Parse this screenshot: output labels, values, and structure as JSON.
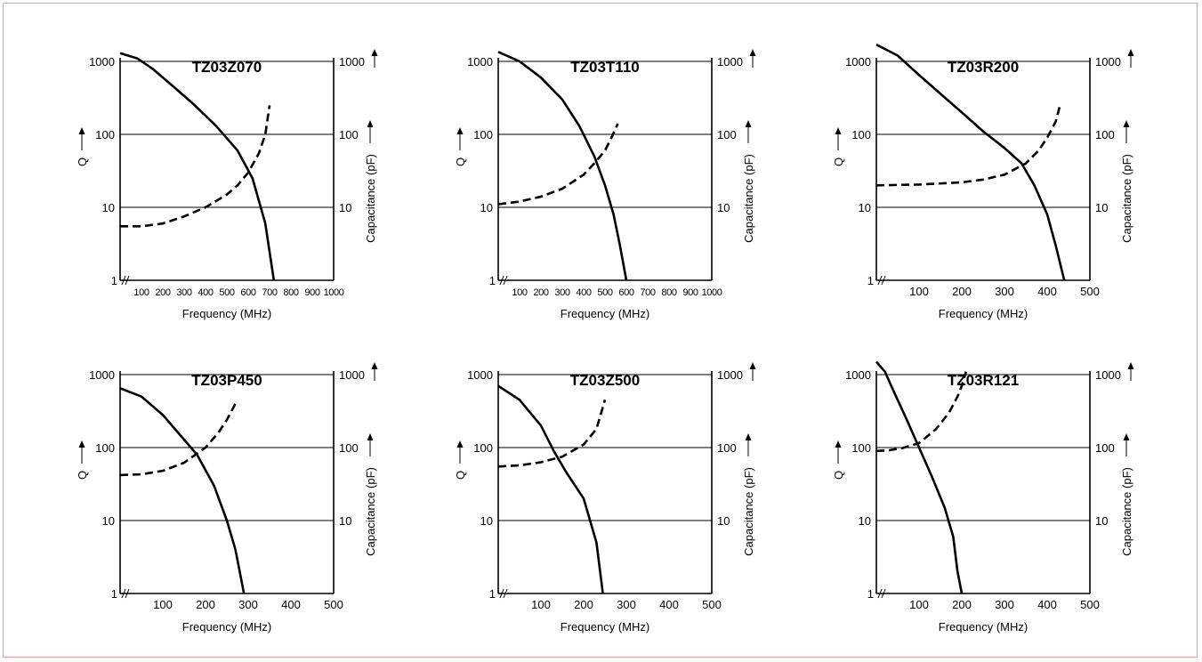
{
  "chart_data": [
    {
      "type": "line",
      "title": "TZ03Z070",
      "xlabel": "Frequency (MHz)",
      "ylabel_left": "Q",
      "ylabel_right": "Capacitance (pF)",
      "xlim": [
        0,
        1000
      ],
      "xticks": [
        100,
        200,
        300,
        400,
        500,
        600,
        700,
        800,
        900,
        1000
      ],
      "yscale": "log",
      "ylim": [
        1,
        1000
      ],
      "yticks": [
        "1",
        "10",
        "100",
        "1000"
      ],
      "yticks_right": [
        "10",
        "100",
        "1000"
      ],
      "series": [
        {
          "style": "solid",
          "x": [
            0,
            80,
            150,
            250,
            350,
            450,
            550,
            620,
            680,
            720
          ],
          "y": [
            1300,
            1100,
            800,
            450,
            250,
            130,
            60,
            25,
            6,
            1
          ]
        },
        {
          "style": "dashed",
          "x": [
            0,
            100,
            200,
            300,
            400,
            500,
            550,
            600,
            650,
            680,
            700
          ],
          "y": [
            5.5,
            5.5,
            6,
            7.5,
            10,
            15,
            20,
            30,
            55,
            100,
            250
          ]
        }
      ]
    },
    {
      "type": "line",
      "title": "TZ03T110",
      "xlabel": "Frequency (MHz)",
      "ylabel_left": "Q",
      "ylabel_right": "Capacitance (pF)",
      "xlim": [
        0,
        1000
      ],
      "xticks": [
        100,
        200,
        300,
        400,
        500,
        600,
        700,
        800,
        900,
        1000
      ],
      "yscale": "log",
      "ylim": [
        1,
        1000
      ],
      "yticks": [
        "1",
        "10",
        "100",
        "1000"
      ],
      "yticks_right": [
        "10",
        "100",
        "1000"
      ],
      "series": [
        {
          "style": "solid",
          "x": [
            0,
            100,
            200,
            300,
            380,
            450,
            500,
            540,
            570,
            600
          ],
          "y": [
            1350,
            1000,
            600,
            300,
            130,
            50,
            20,
            8,
            3,
            1
          ]
        },
        {
          "style": "dashed",
          "x": [
            0,
            100,
            200,
            300,
            400,
            450,
            500,
            530,
            560
          ],
          "y": [
            11,
            12,
            14,
            18,
            28,
            40,
            60,
            90,
            140
          ]
        }
      ]
    },
    {
      "type": "line",
      "title": "TZ03R200",
      "xlabel": "Frequency (MHz)",
      "ylabel_left": "Q",
      "ylabel_right": "Capacitance (pF)",
      "xlim": [
        0,
        500
      ],
      "xticks": [
        100,
        200,
        300,
        400,
        500
      ],
      "yscale": "log",
      "ylim": [
        1,
        1000
      ],
      "yticks": [
        "1",
        "10",
        "100",
        "1000"
      ],
      "yticks_right": [
        "10",
        "100",
        "1000"
      ],
      "series": [
        {
          "style": "solid",
          "x": [
            0,
            50,
            100,
            150,
            200,
            250,
            300,
            340,
            370,
            400,
            420,
            440
          ],
          "y": [
            1700,
            1200,
            650,
            360,
            200,
            110,
            65,
            40,
            20,
            8,
            3,
            1
          ]
        },
        {
          "style": "dashed",
          "x": [
            0,
            100,
            200,
            250,
            300,
            350,
            380,
            400,
            420,
            430
          ],
          "y": [
            20,
            20.5,
            22,
            24,
            28,
            40,
            60,
            90,
            150,
            250
          ]
        }
      ]
    },
    {
      "type": "line",
      "title": "TZ03P450",
      "xlabel": "Frequency (MHz)",
      "ylabel_left": "Q",
      "ylabel_right": "Capacitance (pF)",
      "xlim": [
        0,
        500
      ],
      "xticks": [
        100,
        200,
        300,
        400,
        500
      ],
      "yscale": "log",
      "ylim": [
        1,
        1000
      ],
      "yticks": [
        "1",
        "10",
        "100",
        "1000"
      ],
      "yticks_right": [
        "10",
        "100",
        "1000"
      ],
      "series": [
        {
          "style": "solid",
          "x": [
            0,
            50,
            100,
            140,
            180,
            220,
            250,
            270,
            290
          ],
          "y": [
            650,
            500,
            280,
            150,
            80,
            30,
            10,
            4,
            1
          ]
        },
        {
          "style": "dashed",
          "x": [
            0,
            50,
            100,
            150,
            200,
            230,
            250,
            270
          ],
          "y": [
            42,
            43,
            48,
            62,
            100,
            160,
            240,
            400
          ]
        }
      ]
    },
    {
      "type": "line",
      "title": "TZ03Z500",
      "xlabel": "Frequency (MHz)",
      "ylabel_left": "Q",
      "ylabel_right": "Capacitance (pF)",
      "xlim": [
        0,
        500
      ],
      "xticks": [
        100,
        200,
        300,
        400,
        500
      ],
      "yscale": "log",
      "ylim": [
        1,
        1000
      ],
      "yticks": [
        "1",
        "10",
        "100",
        "1000"
      ],
      "yticks_right": [
        "10",
        "100",
        "1000"
      ],
      "series": [
        {
          "style": "solid",
          "x": [
            0,
            50,
            100,
            130,
            160,
            200,
            230,
            245
          ],
          "y": [
            700,
            450,
            200,
            90,
            45,
            20,
            5,
            1
          ]
        },
        {
          "style": "dashed",
          "x": [
            0,
            50,
            100,
            150,
            200,
            230,
            250
          ],
          "y": [
            55,
            57,
            63,
            75,
            110,
            180,
            450
          ]
        }
      ]
    },
    {
      "type": "line",
      "title": "TZ03R121",
      "xlabel": "Frequency (MHz)",
      "ylabel_left": "Q",
      "ylabel_right": "Capacitance (pF)",
      "xlim": [
        0,
        500
      ],
      "xticks": [
        100,
        200,
        300,
        400,
        500
      ],
      "yscale": "log",
      "ylim": [
        1,
        1000
      ],
      "yticks": [
        "1",
        "10",
        "100",
        "1000"
      ],
      "yticks_right": [
        "10",
        "100",
        "1000"
      ],
      "series": [
        {
          "style": "solid",
          "x": [
            0,
            20,
            40,
            70,
            100,
            130,
            160,
            180,
            190,
            200
          ],
          "y": [
            1500,
            1100,
            600,
            250,
            100,
            40,
            15,
            6,
            2,
            1
          ]
        },
        {
          "style": "dashed",
          "x": [
            0,
            30,
            60,
            100,
            140,
            170,
            190,
            200,
            210
          ],
          "y": [
            90,
            92,
            98,
            115,
            180,
            300,
            500,
            700,
            1100
          ]
        }
      ]
    }
  ]
}
